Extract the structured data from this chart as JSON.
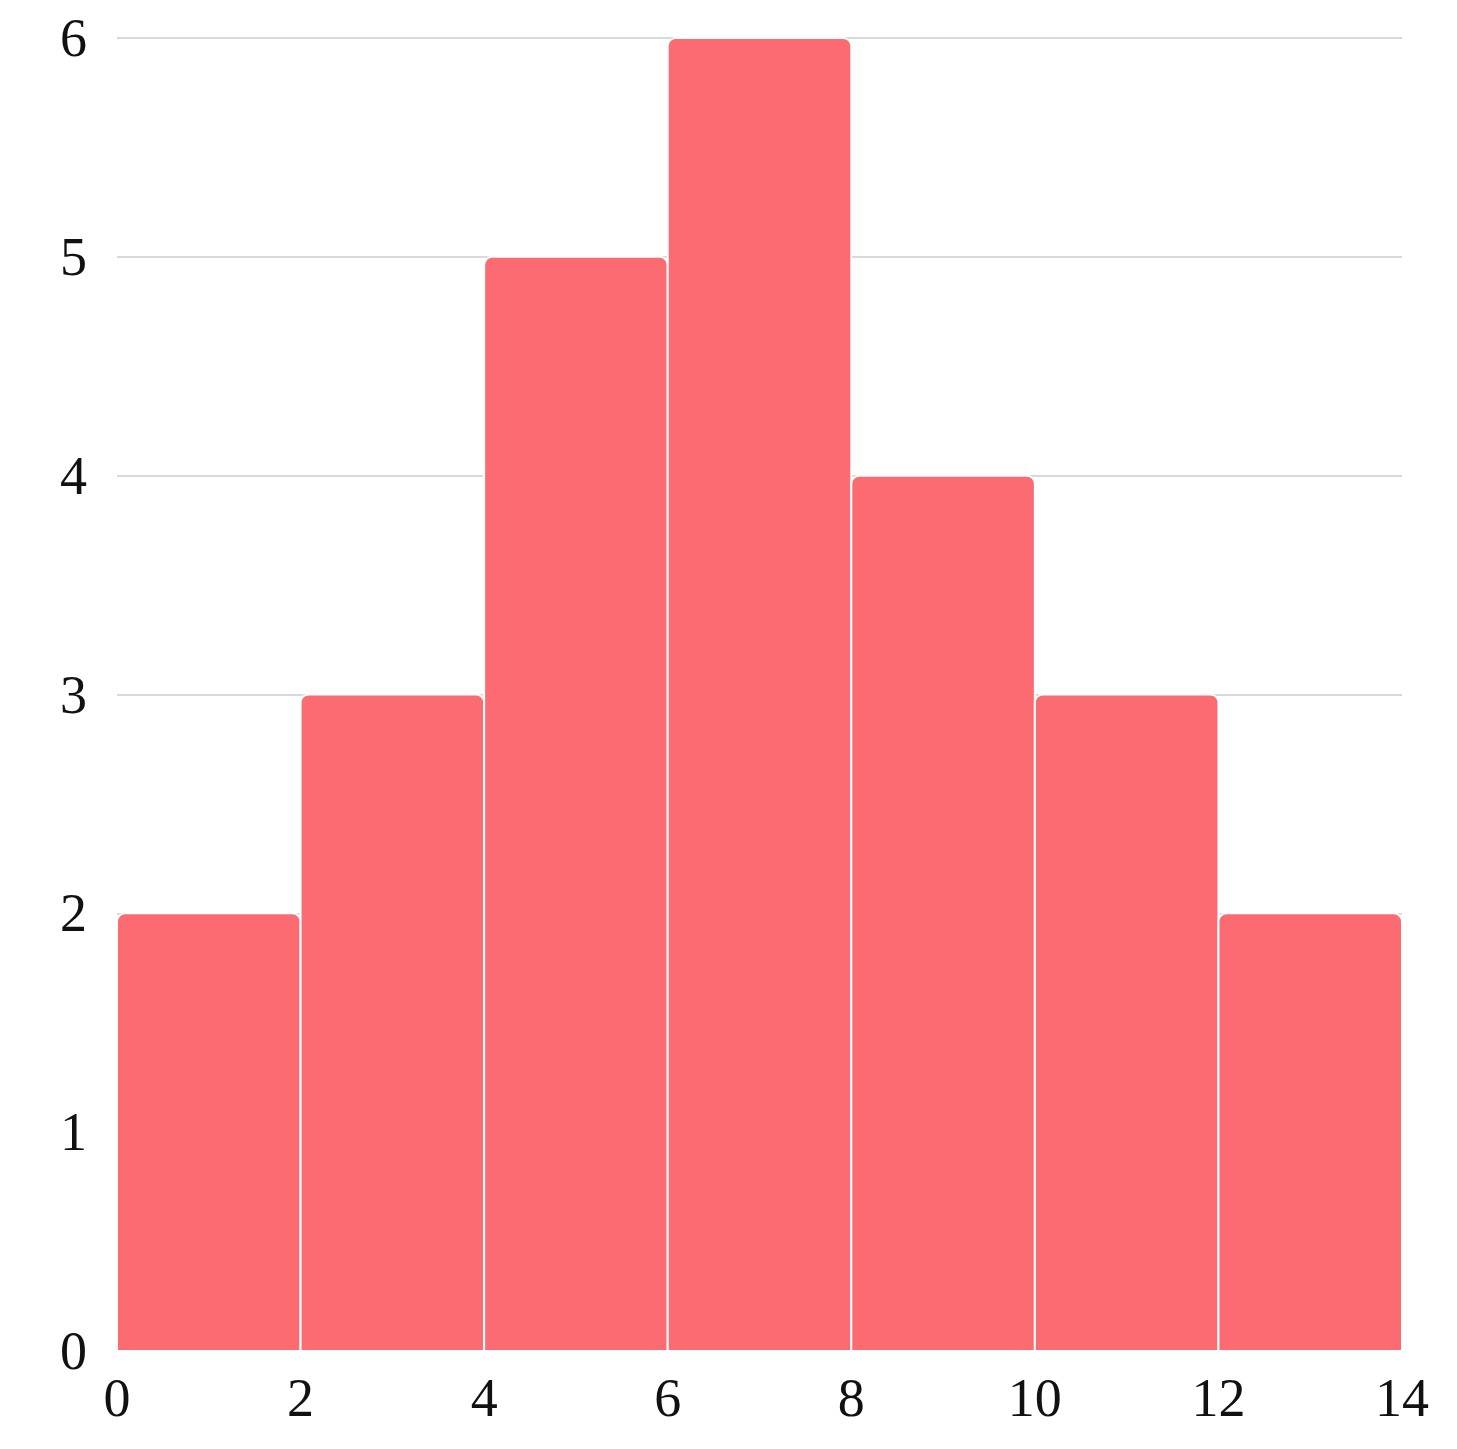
{
  "chart_data": {
    "type": "histogram",
    "bins": [
      0,
      2,
      4,
      6,
      8,
      10,
      12,
      14
    ],
    "values": [
      2,
      3,
      5,
      6,
      4,
      3,
      2
    ],
    "color": "#fd6b72",
    "xlim": [
      0,
      14
    ],
    "xticks": [
      0,
      2,
      4,
      6,
      8,
      10,
      12,
      14
    ],
    "ylim": [
      0,
      6
    ],
    "yticks": [
      0,
      1,
      2,
      3,
      4,
      5,
      6
    ],
    "grid": "y"
  }
}
